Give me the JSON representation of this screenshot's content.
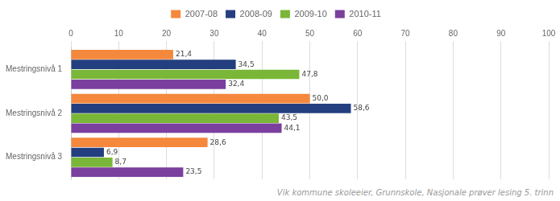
{
  "chart_data": {
    "type": "bar",
    "orientation": "horizontal",
    "categories": [
      "Mestringsnivå 1",
      "Mestringsnivå 2",
      "Mestringsnivå 3"
    ],
    "series": [
      {
        "name": "2007-08",
        "color": "#F4883C",
        "values": [
          21.4,
          50.0,
          28.6
        ],
        "value_labels": [
          "21,4",
          "50,0",
          "28,6"
        ]
      },
      {
        "name": "2008-09",
        "color": "#243F7F",
        "values": [
          34.5,
          58.6,
          6.9
        ],
        "value_labels": [
          "34,5",
          "58,6",
          "6,9"
        ]
      },
      {
        "name": "2009-10",
        "color": "#7AB637",
        "values": [
          47.8,
          43.5,
          8.7
        ],
        "value_labels": [
          "47,8",
          "43,5",
          "8,7"
        ]
      },
      {
        "name": "2010-11",
        "color": "#7B3F9E",
        "values": [
          32.4,
          44.1,
          23.5
        ],
        "value_labels": [
          "32,4",
          "44,1",
          "23,5"
        ]
      }
    ],
    "xlim": [
      0,
      100
    ],
    "xticks": [
      0,
      10,
      20,
      30,
      40,
      50,
      60,
      70,
      80,
      90,
      100
    ],
    "grid": "x",
    "legend": "top",
    "data_labels": true,
    "annotations": [
      "Vik kommune skoleeier, Grunnskole, Nasjonale prøver lesing 5. trinn"
    ]
  }
}
